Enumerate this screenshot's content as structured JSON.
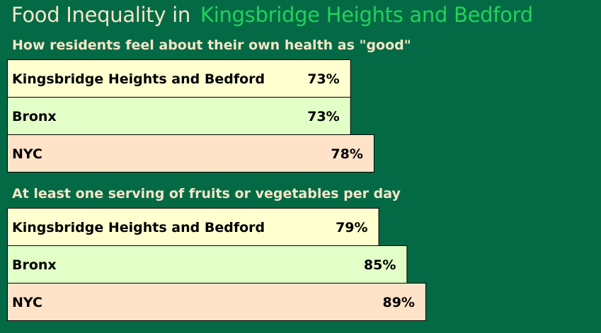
{
  "title": {
    "prefix": "Food Inequality in",
    "place": "Kingsbridge Heights and Bedford"
  },
  "colors": {
    "background": "#046a45",
    "title_text": "#f5e6c8",
    "place_text": "#1fd35b",
    "bar_neighborhood": "#ffffd0",
    "bar_bronx": "#e2ffc8",
    "bar_nyc": "#ffe3c8"
  },
  "chart_data": [
    {
      "type": "bar",
      "orientation": "horizontal",
      "title": "How residents feel about their own health as \"good\"",
      "categories": [
        "Kingsbridge Heights and Bedford",
        "Bronx",
        "NYC"
      ],
      "values": [
        73,
        73,
        78
      ],
      "value_labels": [
        "73%",
        "73%",
        "78%"
      ],
      "unit": "%"
    },
    {
      "type": "bar",
      "orientation": "horizontal",
      "title": "At least one serving of fruits or vegetables per day",
      "categories": [
        "Kingsbridge Heights and Bedford",
        "Bronx",
        "NYC"
      ],
      "values": [
        79,
        85,
        89
      ],
      "value_labels": [
        "79%",
        "85%",
        "89%"
      ],
      "unit": "%"
    }
  ]
}
